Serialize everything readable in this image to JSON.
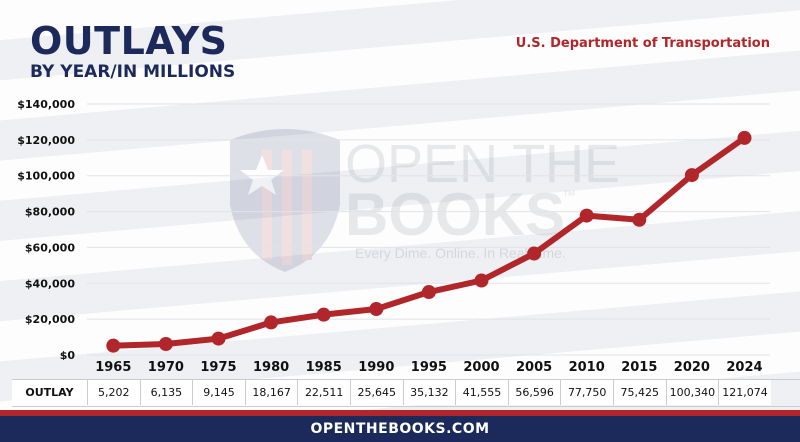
{
  "header": {
    "title": "OUTLAYS",
    "subtitle": "BY YEAR/IN MILLIONS",
    "agency": "U.S. Department of Transportation"
  },
  "watermark": {
    "line1": "OPEN THE",
    "line2": "BOOKS",
    "tagline": "Every Dime. Online. In Real Time.",
    "trademark": "™"
  },
  "table": {
    "row_label": "OUTLAY",
    "values": [
      "5,202",
      "6,135",
      "9,145",
      "18,167",
      "22,511",
      "25,645",
      "35,132",
      "41,555",
      "56,596",
      "77,750",
      "75,425",
      "100,340",
      "121,074"
    ]
  },
  "footer": {
    "text": "OPENTHEBOOKS.COM"
  },
  "colors": {
    "line": "#b0262a",
    "navy": "#1b2a5a",
    "red": "#b0262a"
  },
  "chart_data": {
    "type": "line",
    "title": "OUTLAYS",
    "subtitle": "BY YEAR/IN MILLIONS",
    "categories": [
      "1965",
      "1970",
      "1975",
      "1980",
      "1985",
      "1990",
      "1995",
      "2000",
      "2005",
      "2010",
      "2015",
      "2020",
      "2024"
    ],
    "series": [
      {
        "values": [
          5202,
          6135,
          9145,
          18167,
          22511,
          25645,
          35132,
          41555,
          56596,
          77750,
          75425,
          100340,
          121074
        ]
      }
    ],
    "ylim": [
      0,
      140000
    ],
    "yticks": [
      0,
      20000,
      40000,
      60000,
      80000,
      100000,
      120000,
      140000
    ],
    "ytick_labels": [
      "$0",
      "$20,000",
      "$40,000",
      "$60,000",
      "$80,000",
      "$100,000",
      "$120,000",
      "$140,000"
    ],
    "grid": true
  }
}
